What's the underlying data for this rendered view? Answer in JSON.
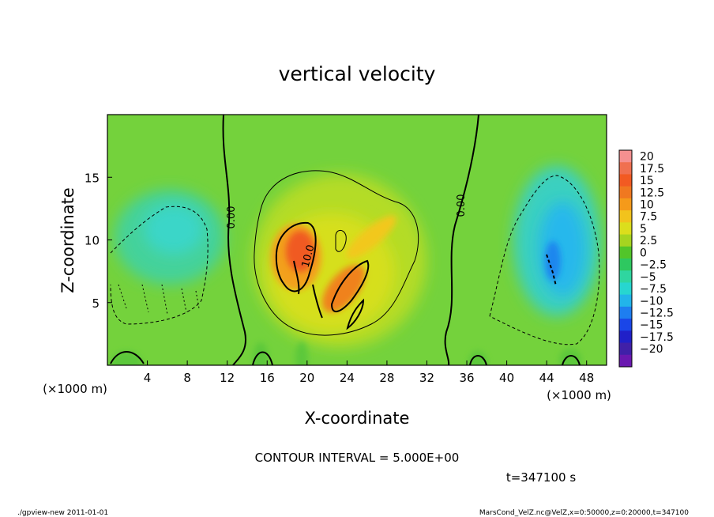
{
  "chart_data": {
    "type": "heatmap",
    "title": "vertical velocity",
    "xlabel": "X-coordinate",
    "ylabel": "Z-coordinate",
    "x_unit": "(×1000 m)",
    "xlim": [
      0,
      50
    ],
    "ylim": [
      0,
      20
    ],
    "x_ticks": [
      4,
      8,
      12,
      16,
      20,
      24,
      28,
      32,
      36,
      40,
      44,
      48
    ],
    "y_ticks": [
      5,
      10,
      15
    ],
    "colorbar": {
      "labels": [
        "20",
        "17.5",
        "15",
        "12.5",
        "10",
        "7.5",
        "5",
        "2.5",
        "0",
        "−2.5",
        "−5",
        "−7.5",
        "−10",
        "−12.5",
        "−15",
        "−17.5",
        "−20"
      ],
      "colors": [
        "#f59090",
        "#f07050",
        "#f25a22",
        "#f07820",
        "#f59a1a",
        "#f2c31c",
        "#dcde1c",
        "#a6d420",
        "#52c52a",
        "#2ec860",
        "#2fd6a0",
        "#27d6d0",
        "#22b4ea",
        "#1e7ef0",
        "#1a46e8",
        "#2020c8",
        "#4020a8",
        "#6a18b0"
      ]
    },
    "contour_interval_text": "CONTOUR INTERVAL = 5.000E+00",
    "contour_labels": [
      "0.00",
      "0.00",
      "10.0"
    ],
    "time_text": "t=347100 s",
    "features": [
      {
        "kind": "updraft",
        "x": 21,
        "z": 9,
        "peak": 12
      },
      {
        "kind": "updraft",
        "x": 24,
        "z": 6,
        "peak": 11
      },
      {
        "kind": "downdraft",
        "x": 6.5,
        "z": 8,
        "peak": -7
      },
      {
        "kind": "downdraft",
        "x": 44.5,
        "z": 8,
        "peak": -10
      }
    ]
  },
  "footer": {
    "left": "./gpview-new   2011-01-01",
    "right": "MarsCond_VelZ.nc@VelZ,x=0:50000,z=0:20000,t=347100"
  }
}
